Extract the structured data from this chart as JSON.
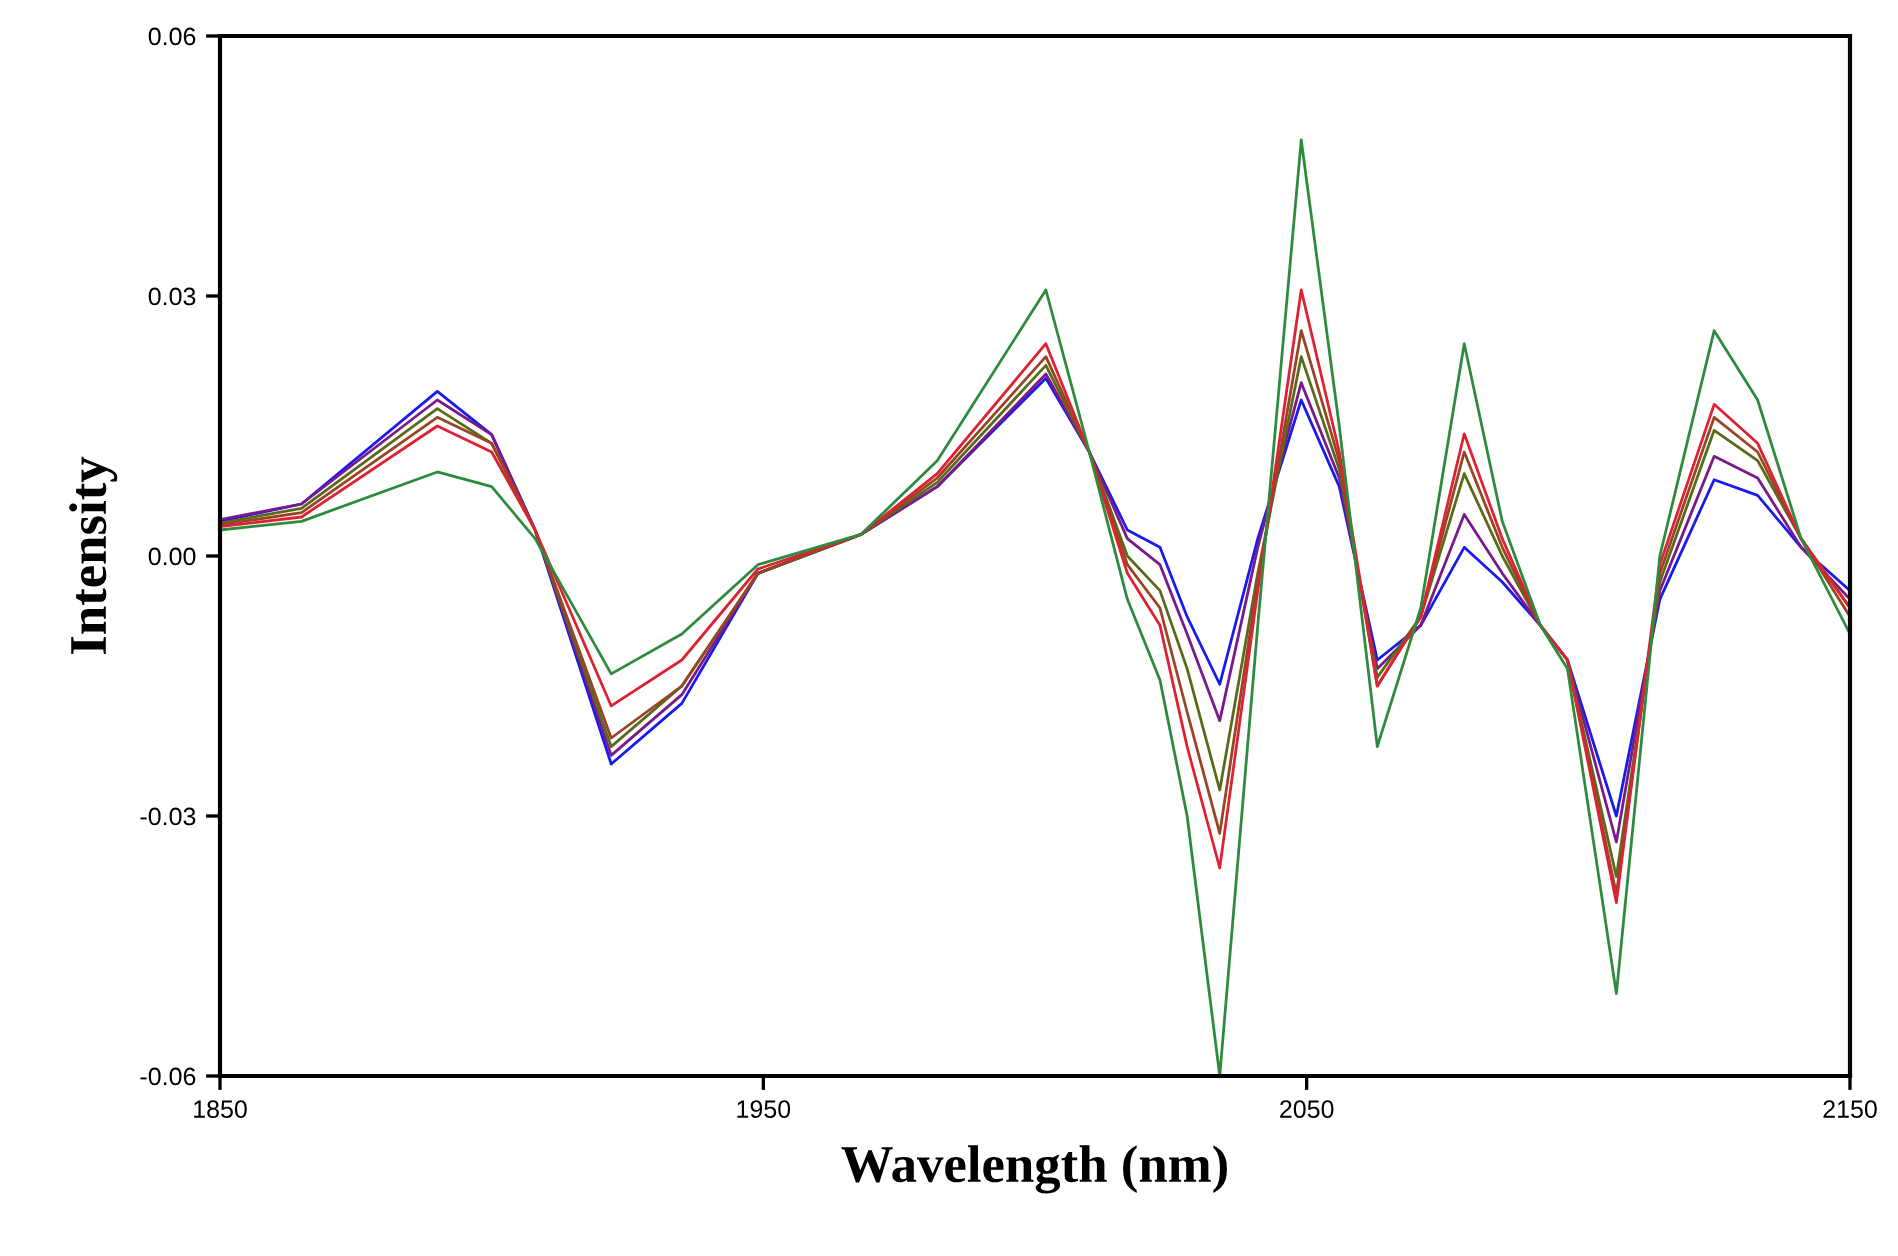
{
  "chart_data": {
    "type": "line",
    "xlabel": "Wavelength (nm)",
    "ylabel": "Intensity",
    "x": [
      1850,
      1865,
      1890,
      1900,
      1908,
      1922,
      1935,
      1949,
      1968,
      1982,
      2002,
      2010,
      2017,
      2023,
      2028,
      2034,
      2041,
      2049,
      2056,
      2063,
      2071,
      2079,
      2086,
      2093,
      2098,
      2107,
      2115,
      2125,
      2133,
      2141,
      2150
    ],
    "xlim": [
      1850,
      2150
    ],
    "xticks": [
      1850,
      1950,
      2050,
      2150
    ],
    "ylim": [
      -0.06,
      0.06
    ],
    "yticks": [
      {
        "value": -0.06,
        "label": "-0.06"
      },
      {
        "value": -0.03,
        "label": "-0.03"
      },
      {
        "value": 0,
        "label": "0.00"
      },
      {
        "value": 0.03,
        "label": "0.03"
      },
      {
        "value": 0.06,
        "label": "0.06"
      }
    ],
    "grid": false,
    "marker": "none",
    "line_style": "solid",
    "series": [
      {
        "color": "#1a1aee",
        "values": [
          0.004,
          0.006,
          0.019,
          0.014,
          0.003,
          -0.024,
          -0.017,
          -0.002,
          0.0025,
          0.008,
          0.0205,
          0.012,
          0.003,
          0.001,
          -0.007,
          -0.0148,
          0.002,
          0.018,
          0.008,
          -0.012,
          -0.008,
          0.001,
          -0.003,
          -0.008,
          -0.012,
          -0.03,
          -0.005,
          0.0088,
          0.007,
          0.001,
          -0.004
        ]
      },
      {
        "color": "#7a1a8a",
        "values": [
          0.0042,
          0.006,
          0.018,
          0.014,
          0.003,
          -0.023,
          -0.016,
          -0.002,
          0.0025,
          0.008,
          0.021,
          0.012,
          0.002,
          -0.001,
          -0.009,
          -0.019,
          0.001,
          0.02,
          0.009,
          -0.013,
          -0.008,
          0.0048,
          -0.002,
          -0.008,
          -0.012,
          -0.033,
          -0.004,
          0.0115,
          0.009,
          0.001,
          -0.005
        ]
      },
      {
        "color": "#5a6a1a",
        "values": [
          0.0038,
          0.0055,
          0.017,
          0.013,
          0.003,
          -0.022,
          -0.015,
          -0.002,
          0.0025,
          0.0085,
          0.022,
          0.012,
          0.0,
          -0.004,
          -0.013,
          -0.027,
          -0.002,
          0.023,
          0.01,
          -0.014,
          -0.007,
          0.0095,
          0.0,
          -0.008,
          -0.012,
          -0.037,
          -0.003,
          0.0145,
          0.011,
          0.002,
          -0.006
        ]
      },
      {
        "color": "#994422",
        "values": [
          0.0036,
          0.005,
          0.016,
          0.013,
          0.003,
          -0.021,
          -0.015,
          -0.002,
          0.0025,
          0.009,
          0.023,
          0.012,
          -0.001,
          -0.006,
          -0.018,
          -0.032,
          -0.003,
          0.026,
          0.011,
          -0.015,
          -0.007,
          0.012,
          0.001,
          -0.008,
          -0.012,
          -0.039,
          -0.002,
          0.016,
          0.012,
          0.002,
          -0.007
        ]
      },
      {
        "color": "#dd2233",
        "values": [
          0.0034,
          0.0045,
          0.015,
          0.012,
          0.003,
          -0.0173,
          -0.012,
          -0.0015,
          0.0025,
          0.0095,
          0.0245,
          0.012,
          -0.002,
          -0.008,
          -0.022,
          -0.036,
          -0.004,
          0.0307,
          0.012,
          -0.015,
          -0.007,
          0.0141,
          0.002,
          -0.008,
          -0.012,
          -0.04,
          -0.001,
          0.0175,
          0.013,
          0.002,
          -0.006
        ]
      },
      {
        "color": "#2e8b3e",
        "values": [
          0.003,
          0.004,
          0.0097,
          0.008,
          0.002,
          -0.0136,
          -0.009,
          -0.001,
          0.0025,
          0.011,
          0.0307,
          0.012,
          -0.005,
          -0.0143,
          -0.03,
          -0.06,
          -0.008,
          0.048,
          0.015,
          -0.022,
          -0.006,
          0.0245,
          0.004,
          -0.008,
          -0.013,
          -0.0505,
          0.0,
          0.026,
          0.018,
          0.002,
          -0.009
        ]
      }
    ]
  }
}
